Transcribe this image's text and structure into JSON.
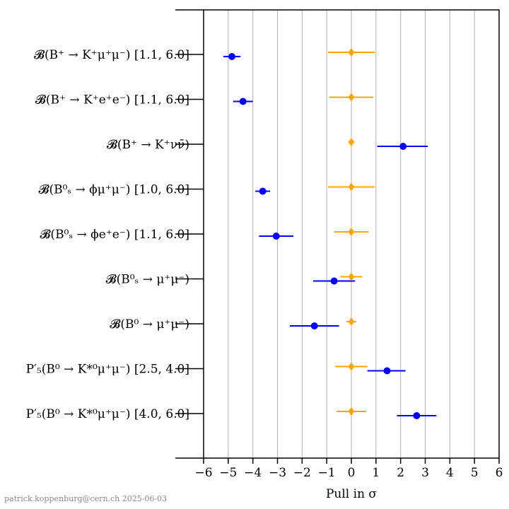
{
  "chart_data": {
    "type": "scatter",
    "xlabel": "Pull in σ",
    "xlim": [
      -6,
      6
    ],
    "xticks": [
      "−6",
      "−5",
      "−4",
      "−3",
      "−2",
      "−1",
      "0",
      "1",
      "2",
      "3",
      "4",
      "5",
      "6"
    ],
    "grid": "vertical",
    "categories": [
      "𝓑(B⁺ → K⁺μ⁺μ⁻) [1.1, 6.0]",
      "𝓑(B⁺ → K⁺e⁺e⁻) [1.1, 6.0]",
      "𝓑(B⁺ → K⁺νν̄)",
      "𝓑(B⁰ₛ → ϕμ⁺μ⁻) [1.0, 6.0]",
      "𝓑(B⁰ₛ → ϕe⁺e⁻) [1.1, 6.0]",
      "𝓑(B⁰ₛ → μ⁺μ⁻)",
      "𝓑(B⁰ → μ⁺μ⁻)",
      "P′₅(B⁰ → K*⁰μ⁺μ⁻) [2.5, 4.0]",
      "P′₅(B⁰ → K*⁰μ⁺μ⁻) [4.0, 6.0]"
    ],
    "series": [
      {
        "color": "#0000ff",
        "marker": "circle",
        "values": [
          -4.85,
          -4.4,
          2.1,
          -3.6,
          -3.05,
          -0.7,
          -1.5,
          1.45,
          2.65
        ],
        "err_low": [
          0.35,
          0.4,
          1.05,
          0.3,
          0.7,
          0.85,
          1.0,
          0.8,
          0.8
        ],
        "err_high": [
          0.35,
          0.4,
          1.0,
          0.3,
          0.7,
          0.85,
          1.0,
          0.75,
          0.8
        ]
      },
      {
        "color": "#ffa500",
        "marker": "diamond",
        "values": [
          0,
          0,
          0,
          0,
          0,
          0,
          0,
          0,
          0
        ],
        "err_low": [
          0.95,
          0.9,
          0,
          0.95,
          0.7,
          0.45,
          0.2,
          0.65,
          0.6
        ],
        "err_high": [
          0.95,
          0.9,
          0,
          0.95,
          0.7,
          0.45,
          0.2,
          0.65,
          0.6
        ]
      }
    ]
  },
  "footer": {
    "credit": "patrick.koppenburg@cern.ch  2025-06-03"
  }
}
